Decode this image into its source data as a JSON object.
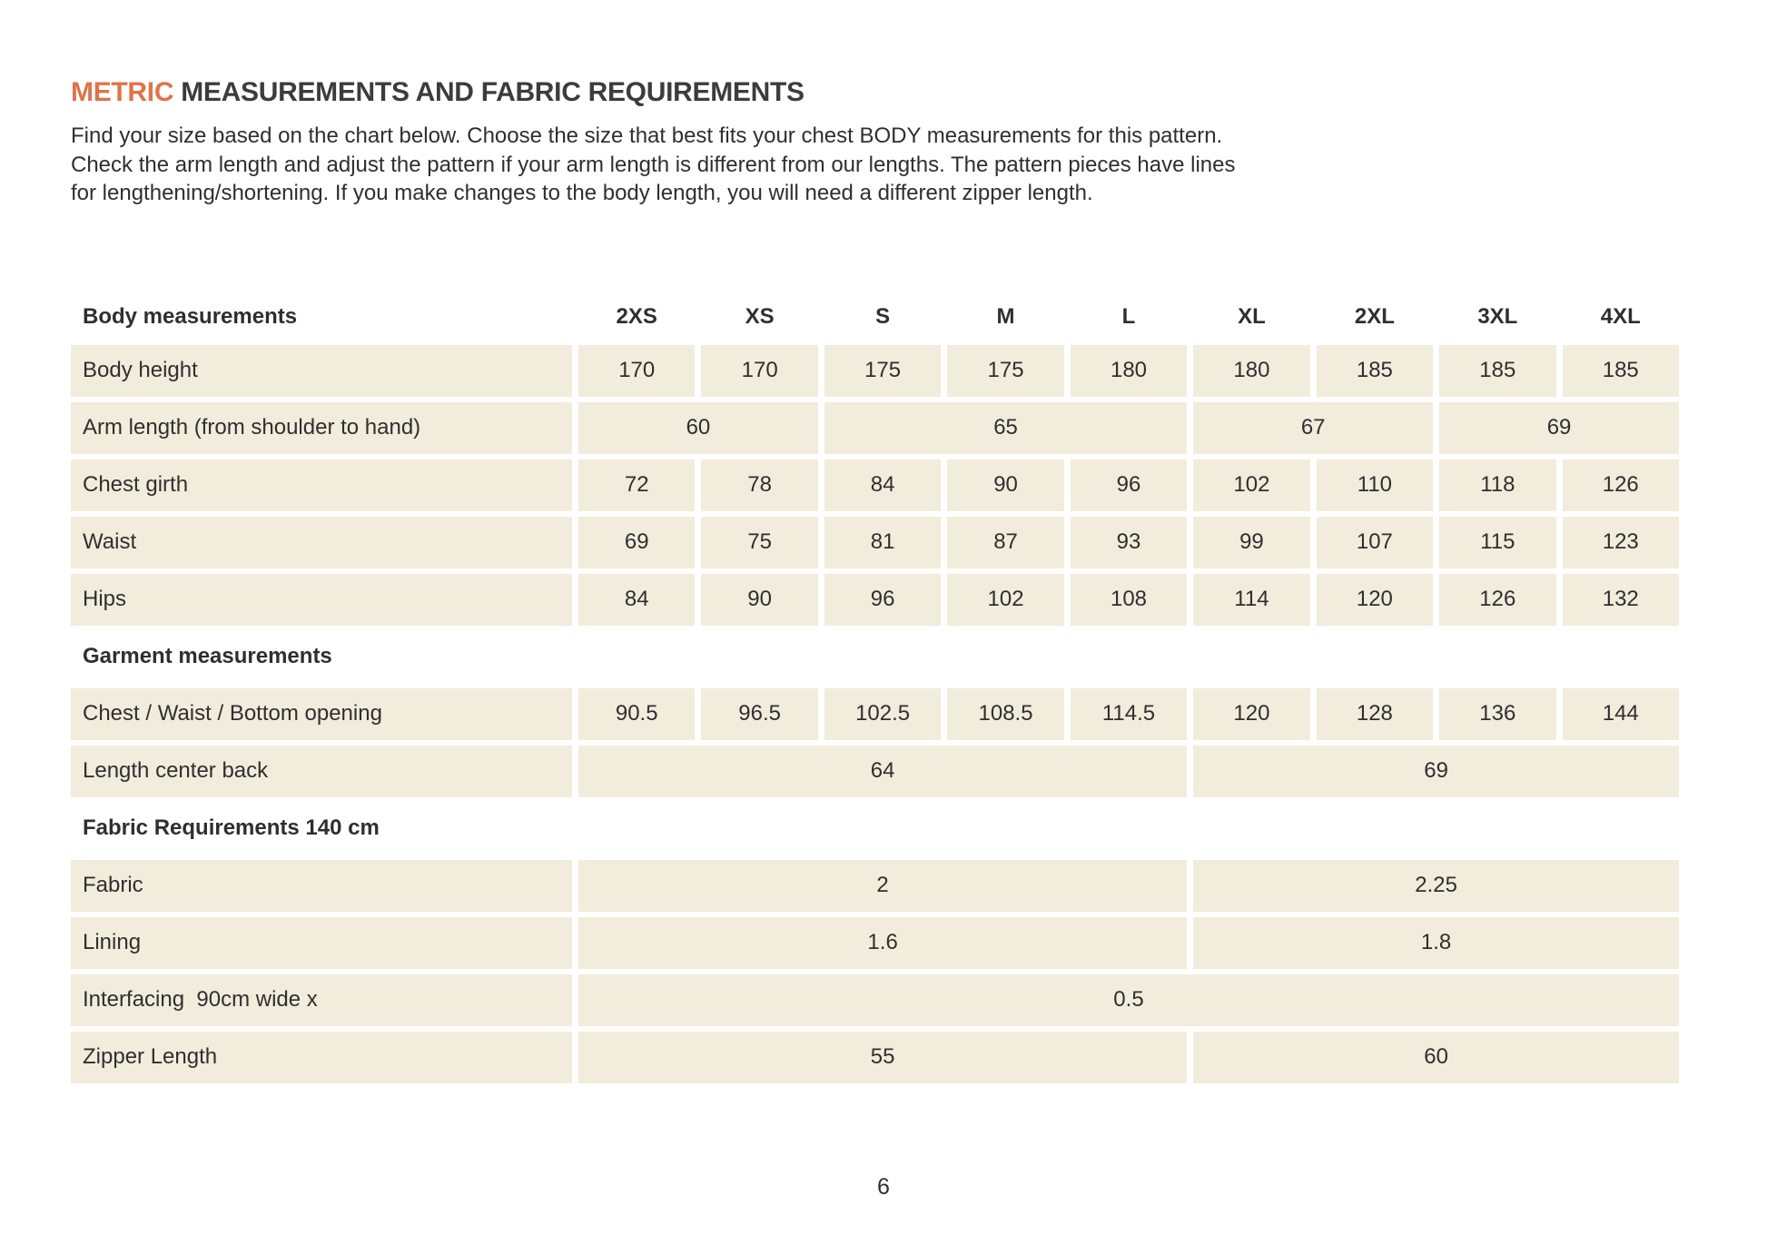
{
  "page": {
    "title": {
      "highlight": "METRIC",
      "rest": " MEASUREMENTS AND FABRIC REQUIREMENTS"
    },
    "intro_lines": [
      "Find your size based on the chart below. Choose the size that best fits your chest BODY measurements for this pattern.",
      "Check the arm length and adjust the pattern if your arm length is different from our lengths. The pattern pieces have lines",
      "for lengthening/shortening. If you make changes to the body length, you will need a different zipper length."
    ],
    "page_number": "6"
  },
  "colors": {
    "accent": "#de744a",
    "heading": "#3c3c3c",
    "text": "#2f2f2f",
    "cell_bg": "#f2ecdc"
  },
  "table": {
    "header": {
      "label": "Body measurements",
      "sizes": [
        "2XS",
        "XS",
        "S",
        "M",
        "L",
        "XL",
        "2XL",
        "3XL",
        "4XL"
      ]
    },
    "rows": [
      {
        "kind": "data",
        "name": "body-height",
        "label": "Body height",
        "cells": [
          {
            "text": "170"
          },
          {
            "text": "170"
          },
          {
            "text": "175"
          },
          {
            "text": "175"
          },
          {
            "text": "180"
          },
          {
            "text": "180"
          },
          {
            "text": "185"
          },
          {
            "text": "185"
          },
          {
            "text": "185"
          }
        ]
      },
      {
        "kind": "data",
        "name": "arm-length",
        "label": "Arm length (from shoulder to hand)",
        "cells": [
          {
            "text": "60",
            "span": 2
          },
          {
            "text": "65",
            "span": 3
          },
          {
            "text": "67",
            "span": 2
          },
          {
            "text": "69",
            "span": 2
          }
        ]
      },
      {
        "kind": "data",
        "name": "chest-girth",
        "label": "Chest girth",
        "cells": [
          {
            "text": "72"
          },
          {
            "text": "78"
          },
          {
            "text": "84"
          },
          {
            "text": "90"
          },
          {
            "text": "96"
          },
          {
            "text": "102"
          },
          {
            "text": "110"
          },
          {
            "text": "118"
          },
          {
            "text": "126"
          }
        ]
      },
      {
        "kind": "data",
        "name": "waist",
        "label": "Waist",
        "cells": [
          {
            "text": "69"
          },
          {
            "text": "75"
          },
          {
            "text": "81"
          },
          {
            "text": "87"
          },
          {
            "text": "93"
          },
          {
            "text": "99"
          },
          {
            "text": "107"
          },
          {
            "text": "115"
          },
          {
            "text": "123"
          }
        ]
      },
      {
        "kind": "data",
        "name": "hips",
        "label": "Hips",
        "cells": [
          {
            "text": "84"
          },
          {
            "text": "90"
          },
          {
            "text": "96"
          },
          {
            "text": "102"
          },
          {
            "text": "108"
          },
          {
            "text": "114"
          },
          {
            "text": "120"
          },
          {
            "text": "126"
          },
          {
            "text": "132"
          }
        ]
      },
      {
        "kind": "section",
        "name": "garment-measurements",
        "label": "Garment measurements"
      },
      {
        "kind": "data",
        "name": "chest-waist-bottom-opening",
        "label": "Chest / Waist / Bottom opening",
        "cells": [
          {
            "text": "90.5"
          },
          {
            "text": "96.5"
          },
          {
            "text": "102.5"
          },
          {
            "text": "108.5"
          },
          {
            "text": "114.5"
          },
          {
            "text": "120"
          },
          {
            "text": "128"
          },
          {
            "text": "136"
          },
          {
            "text": "144"
          }
        ]
      },
      {
        "kind": "data",
        "name": "length-center-back",
        "label": "Length center back",
        "cells": [
          {
            "text": "64",
            "span": 5
          },
          {
            "text": "69",
            "span": 4
          }
        ]
      },
      {
        "kind": "section",
        "name": "fabric-requirements",
        "label": "Fabric Requirements 140 cm"
      },
      {
        "kind": "data",
        "name": "fabric",
        "label": "Fabric",
        "cells": [
          {
            "text": "2",
            "span": 5
          },
          {
            "text": "2.25",
            "span": 4
          }
        ]
      },
      {
        "kind": "data",
        "name": "lining",
        "label": "Lining",
        "cells": [
          {
            "text": "1.6",
            "span": 5
          },
          {
            "text": "1.8",
            "span": 4
          }
        ]
      },
      {
        "kind": "data",
        "name": "interfacing",
        "label": "Interfacing  90cm wide x",
        "cells": [
          {
            "text": "0.5",
            "span": 9
          }
        ]
      },
      {
        "kind": "data",
        "name": "zipper-length",
        "label": "Zipper Length",
        "cells": [
          {
            "text": "55",
            "span": 5
          },
          {
            "text": "60",
            "span": 4
          }
        ]
      }
    ]
  }
}
